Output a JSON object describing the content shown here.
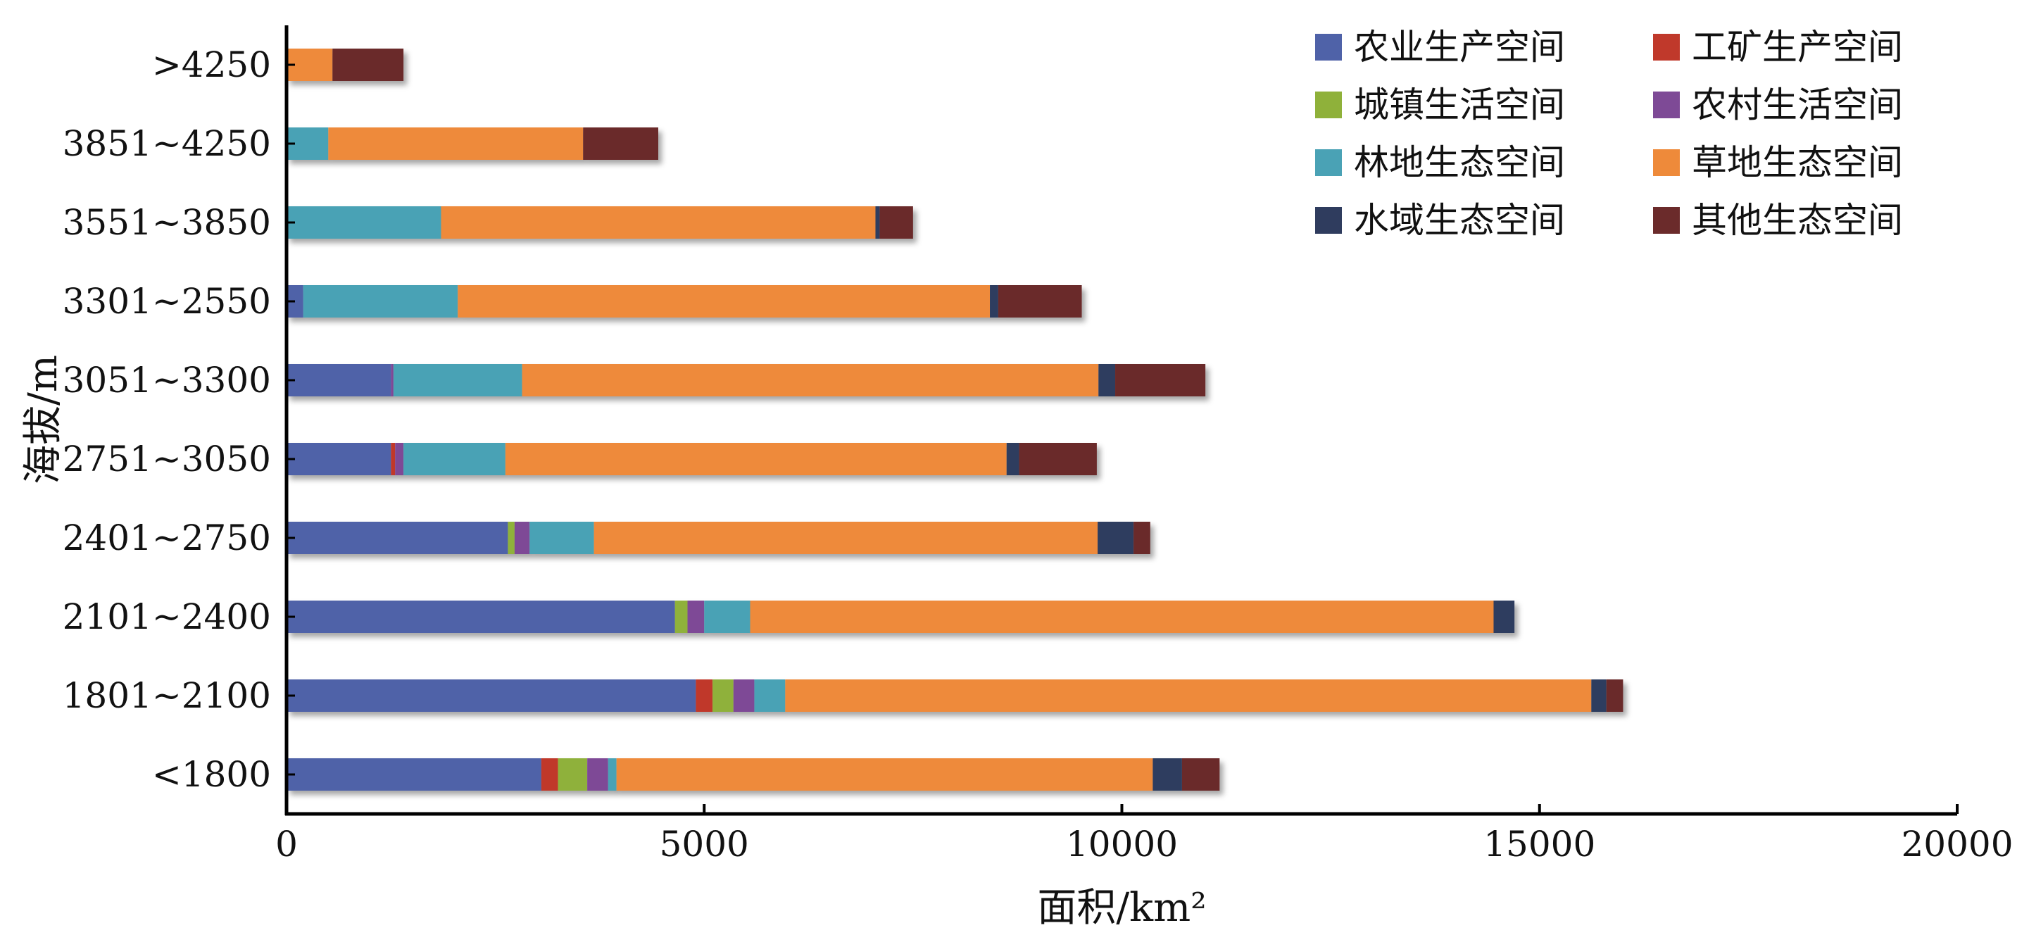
{
  "chart_data": {
    "type": "bar",
    "orientation": "horizontal",
    "stacked": true,
    "title": "",
    "xlabel": "面积/km²",
    "ylabel": "海拔/m",
    "xlim": [
      0,
      20000
    ],
    "xticks": [
      "0",
      "5000",
      "10000",
      "15000",
      "20000"
    ],
    "categories": [
      "<1800",
      "1801~2100",
      "2101~2400",
      "2401~2750",
      "2751~3050",
      "3051~3300",
      "3301~2550",
      "3551~3850",
      "3851~4250",
      ">4250"
    ],
    "grid": false,
    "legend_position": "top-right",
    "series": [
      {
        "name": "农业生产空间",
        "color": "#4f62a8",
        "values": [
          3050,
          4900,
          4650,
          2650,
          1250,
          1250,
          200,
          0,
          0,
          0
        ]
      },
      {
        "name": "工矿生产空间",
        "color": "#c0392b",
        "values": [
          200,
          200,
          0,
          0,
          50,
          0,
          0,
          0,
          0,
          0
        ]
      },
      {
        "name": "城镇生活空间",
        "color": "#8fb13a",
        "values": [
          350,
          250,
          150,
          80,
          0,
          0,
          0,
          0,
          0,
          0
        ]
      },
      {
        "name": "农村生活空间",
        "color": "#7e4a96",
        "values": [
          250,
          250,
          200,
          180,
          100,
          30,
          0,
          0,
          0,
          0
        ]
      },
      {
        "name": "林地生态空间",
        "color": "#4aa2b5",
        "values": [
          100,
          370,
          550,
          770,
          1220,
          1540,
          1850,
          1850,
          500,
          0
        ]
      },
      {
        "name": "草地生态空间",
        "color": "#ee8a3a",
        "values": [
          6420,
          9650,
          8900,
          6030,
          6000,
          6900,
          6370,
          5200,
          3050,
          550
        ]
      },
      {
        "name": "水域生态空间",
        "color": "#2f3c5e",
        "values": [
          350,
          180,
          250,
          430,
          150,
          200,
          100,
          50,
          0,
          0
        ]
      },
      {
        "name": "其他生态空间",
        "color": "#6b2b2b",
        "values": [
          450,
          200,
          0,
          200,
          930,
          1080,
          1000,
          400,
          900,
          850
        ]
      }
    ]
  }
}
